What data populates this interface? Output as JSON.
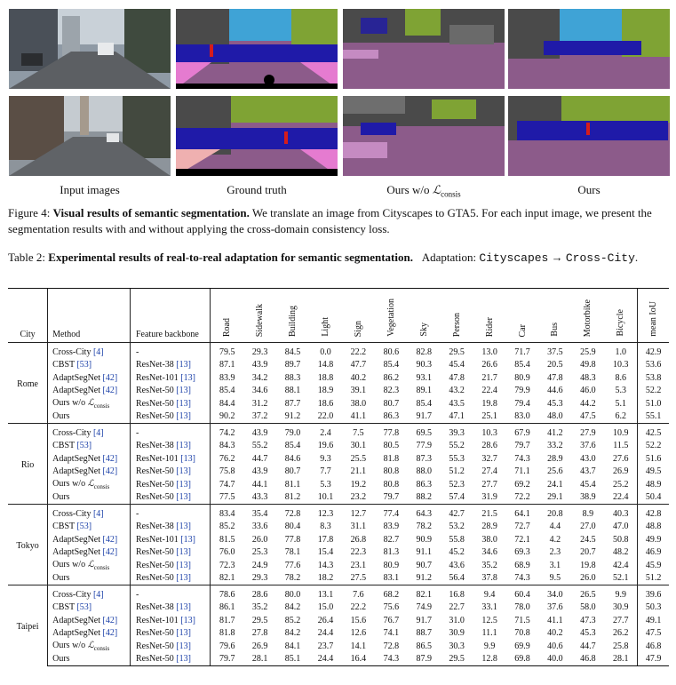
{
  "figure": {
    "column_captions": [
      "Input images",
      "Ground truth",
      "Ours w/o ",
      "Ours"
    ],
    "consis_sub": "consis",
    "loss_symbol": "ℒ",
    "caption_label": "Figure 4:",
    "caption_bold": "Visual results of semantic segmentation.",
    "caption_rest": " We translate an image from Cityscapes to GTA5. For each input image, we present the segmentation results with and without applying the cross-domain consistency loss."
  },
  "table_caption": {
    "label": "Table 2:",
    "bold": "Experimental results of real-to-real adaptation for semantic segmentation.",
    "adaptation_label": "Adaptation:",
    "source": "Cityscapes",
    "arrow": "→",
    "target": "Cross-City",
    "period": "."
  },
  "table": {
    "headers": {
      "city": "City",
      "method": "Method",
      "backbone": "Feature backbone",
      "classes": [
        "Road",
        "Sidewalk",
        "Building",
        "Light",
        "Sign",
        "Vegetation",
        "Sky",
        "Person",
        "Rider",
        "Car",
        "Bus",
        "Motorbike",
        "Bicycle"
      ],
      "miou": "mean IoU"
    },
    "groups": [
      {
        "city": "Rome",
        "rows": [
          {
            "method": "Cross-City",
            "cite": "[4]",
            "backbone": "-",
            "bcite": "",
            "values": [
              "79.5",
              "29.3",
              "84.5",
              "0.0",
              "22.2",
              "80.6",
              "82.8",
              "29.5",
              "13.0",
              "71.7",
              "37.5",
              "25.9",
              "1.0"
            ],
            "miou": "42.9"
          },
          {
            "method": "CBST",
            "cite": "[53]",
            "backbone": "ResNet-38",
            "bcite": "[13]",
            "values": [
              "87.1",
              "43.9",
              "89.7",
              "14.8",
              "47.7",
              "85.4",
              "90.3",
              "45.4",
              "26.6",
              "85.4",
              "20.5",
              "49.8",
              "10.3"
            ],
            "miou": "53.6"
          },
          {
            "method": "AdaptSegNet",
            "cite": "[42]",
            "backbone": "ResNet-101",
            "bcite": "[13]",
            "values": [
              "83.9",
              "34.2",
              "88.3",
              "18.8",
              "40.2",
              "86.2",
              "93.1",
              "47.8",
              "21.7",
              "80.9",
              "47.8",
              "48.3",
              "8.6"
            ],
            "miou": "53.8"
          },
          {
            "method": "AdaptSegNet",
            "cite": "[42]",
            "backbone": "ResNet-50",
            "bcite": "[13]",
            "values": [
              "85.4",
              "34.6",
              "88.1",
              "18.9",
              "39.1",
              "82.3",
              "89.1",
              "43.2",
              "22.4",
              "79.9",
              "44.6",
              "46.0",
              "5.3"
            ],
            "miou": "52.2"
          },
          {
            "method": "Ours w/o ",
            "cite": "",
            "sub": true,
            "backbone": "ResNet-50",
            "bcite": "[13]",
            "values": [
              "84.4",
              "31.2",
              "87.7",
              "18.6",
              "38.0",
              "80.7",
              "85.4",
              "43.5",
              "19.8",
              "79.4",
              "45.3",
              "44.2",
              "5.1"
            ],
            "miou": "51.0"
          },
          {
            "method": "Ours",
            "cite": "",
            "backbone": "ResNet-50",
            "bcite": "[13]",
            "values": [
              "90.2",
              "37.2",
              "91.2",
              "22.0",
              "41.1",
              "86.3",
              "91.7",
              "47.1",
              "25.1",
              "83.0",
              "48.0",
              "47.5",
              "6.2"
            ],
            "miou": "55.1"
          }
        ]
      },
      {
        "city": "Rio",
        "rows": [
          {
            "method": "Cross-City",
            "cite": "[4]",
            "backbone": "-",
            "bcite": "",
            "values": [
              "74.2",
              "43.9",
              "79.0",
              "2.4",
              "7.5",
              "77.8",
              "69.5",
              "39.3",
              "10.3",
              "67.9",
              "41.2",
              "27.9",
              "10.9"
            ],
            "miou": "42.5"
          },
          {
            "method": "CBST",
            "cite": "[53]",
            "backbone": "ResNet-38",
            "bcite": "[13]",
            "values": [
              "84.3",
              "55.2",
              "85.4",
              "19.6",
              "30.1",
              "80.5",
              "77.9",
              "55.2",
              "28.6",
              "79.7",
              "33.2",
              "37.6",
              "11.5"
            ],
            "miou": "52.2"
          },
          {
            "method": "AdaptSegNet",
            "cite": "[42]",
            "backbone": "ResNet-101",
            "bcite": "[13]",
            "values": [
              "76.2",
              "44.7",
              "84.6",
              "9.3",
              "25.5",
              "81.8",
              "87.3",
              "55.3",
              "32.7",
              "74.3",
              "28.9",
              "43.0",
              "27.6"
            ],
            "miou": "51.6"
          },
          {
            "method": "AdaptSegNet",
            "cite": "[42]",
            "backbone": "ResNet-50",
            "bcite": "[13]",
            "values": [
              "75.8",
              "43.9",
              "80.7",
              "7.7",
              "21.1",
              "80.8",
              "88.0",
              "51.2",
              "27.4",
              "71.1",
              "25.6",
              "43.7",
              "26.9"
            ],
            "miou": "49.5"
          },
          {
            "method": "Ours w/o ",
            "cite": "",
            "sub": true,
            "backbone": "ResNet-50",
            "bcite": "[13]",
            "values": [
              "74.7",
              "44.1",
              "81.1",
              "5.3",
              "19.2",
              "80.8",
              "86.3",
              "52.3",
              "27.7",
              "69.2",
              "24.1",
              "45.4",
              "25.2"
            ],
            "miou": "48.9"
          },
          {
            "method": "Ours",
            "cite": "",
            "backbone": "ResNet-50",
            "bcite": "[13]",
            "values": [
              "77.5",
              "43.3",
              "81.2",
              "10.1",
              "23.2",
              "79.7",
              "88.2",
              "57.4",
              "31.9",
              "72.2",
              "29.1",
              "38.9",
              "22.4"
            ],
            "miou": "50.4"
          }
        ]
      },
      {
        "city": "Tokyo",
        "rows": [
          {
            "method": "Cross-City",
            "cite": "[4]",
            "backbone": "-",
            "bcite": "",
            "values": [
              "83.4",
              "35.4",
              "72.8",
              "12.3",
              "12.7",
              "77.4",
              "64.3",
              "42.7",
              "21.5",
              "64.1",
              "20.8",
              "8.9",
              "40.3"
            ],
            "miou": "42.8"
          },
          {
            "method": "CBST",
            "cite": "[53]",
            "backbone": "ResNet-38",
            "bcite": "[13]",
            "values": [
              "85.2",
              "33.6",
              "80.4",
              "8.3",
              "31.1",
              "83.9",
              "78.2",
              "53.2",
              "28.9",
              "72.7",
              "4.4",
              "27.0",
              "47.0"
            ],
            "miou": "48.8"
          },
          {
            "method": "AdaptSegNet",
            "cite": "[42]",
            "backbone": "ResNet-101",
            "bcite": "[13]",
            "values": [
              "81.5",
              "26.0",
              "77.8",
              "17.8",
              "26.8",
              "82.7",
              "90.9",
              "55.8",
              "38.0",
              "72.1",
              "4.2",
              "24.5",
              "50.8"
            ],
            "miou": "49.9"
          },
          {
            "method": "AdaptSegNet",
            "cite": "[42]",
            "backbone": "ResNet-50",
            "bcite": "[13]",
            "values": [
              "76.0",
              "25.3",
              "78.1",
              "15.4",
              "22.3",
              "81.3",
              "91.1",
              "45.2",
              "34.6",
              "69.3",
              "2.3",
              "20.7",
              "48.2"
            ],
            "miou": "46.9"
          },
          {
            "method": "Ours w/o ",
            "cite": "",
            "sub": true,
            "backbone": "ResNet-50",
            "bcite": "[13]",
            "values": [
              "72.3",
              "24.9",
              "77.6",
              "14.3",
              "23.1",
              "80.9",
              "90.7",
              "43.6",
              "35.2",
              "68.9",
              "3.1",
              "19.8",
              "42.4"
            ],
            "miou": "45.9"
          },
          {
            "method": "Ours",
            "cite": "",
            "backbone": "ResNet-50",
            "bcite": "[13]",
            "values": [
              "82.1",
              "29.3",
              "78.2",
              "18.2",
              "27.5",
              "83.1",
              "91.2",
              "56.4",
              "37.8",
              "74.3",
              "9.5",
              "26.0",
              "52.1"
            ],
            "miou": "51.2"
          }
        ]
      },
      {
        "city": "Taipei",
        "rows": [
          {
            "method": "Cross-City",
            "cite": "[4]",
            "backbone": "-",
            "bcite": "",
            "values": [
              "78.6",
              "28.6",
              "80.0",
              "13.1",
              "7.6",
              "68.2",
              "82.1",
              "16.8",
              "9.4",
              "60.4",
              "34.0",
              "26.5",
              "9.9"
            ],
            "miou": "39.6"
          },
          {
            "method": "CBST",
            "cite": "[53]",
            "backbone": "ResNet-38",
            "bcite": "[13]",
            "values": [
              "86.1",
              "35.2",
              "84.2",
              "15.0",
              "22.2",
              "75.6",
              "74.9",
              "22.7",
              "33.1",
              "78.0",
              "37.6",
              "58.0",
              "30.9"
            ],
            "miou": "50.3"
          },
          {
            "method": "AdaptSegNet",
            "cite": "[42]",
            "backbone": "ResNet-101",
            "bcite": "[13]",
            "values": [
              "81.7",
              "29.5",
              "85.2",
              "26.4",
              "15.6",
              "76.7",
              "91.7",
              "31.0",
              "12.5",
              "71.5",
              "41.1",
              "47.3",
              "27.7"
            ],
            "miou": "49.1"
          },
          {
            "method": "AdaptSegNet",
            "cite": "[42]",
            "backbone": "ResNet-50",
            "bcite": "[13]",
            "values": [
              "81.8",
              "27.8",
              "84.2",
              "24.4",
              "12.6",
              "74.1",
              "88.7",
              "30.9",
              "11.1",
              "70.8",
              "40.2",
              "45.3",
              "26.2"
            ],
            "miou": "47.5"
          },
          {
            "method": "Ours w/o ",
            "cite": "",
            "sub": true,
            "backbone": "ResNet-50",
            "bcite": "[13]",
            "values": [
              "79.6",
              "26.9",
              "84.1",
              "23.7",
              "14.1",
              "72.8",
              "86.5",
              "30.3",
              "9.9",
              "69.9",
              "40.6",
              "44.7",
              "25.8"
            ],
            "miou": "46.8"
          },
          {
            "method": "Ours",
            "cite": "",
            "backbone": "ResNet-50",
            "bcite": "[13]",
            "values": [
              "79.7",
              "28.1",
              "85.1",
              "24.4",
              "16.4",
              "74.3",
              "87.9",
              "29.5",
              "12.8",
              "69.8",
              "40.0",
              "46.8",
              "28.1"
            ],
            "miou": "47.9"
          }
        ]
      }
    ]
  }
}
